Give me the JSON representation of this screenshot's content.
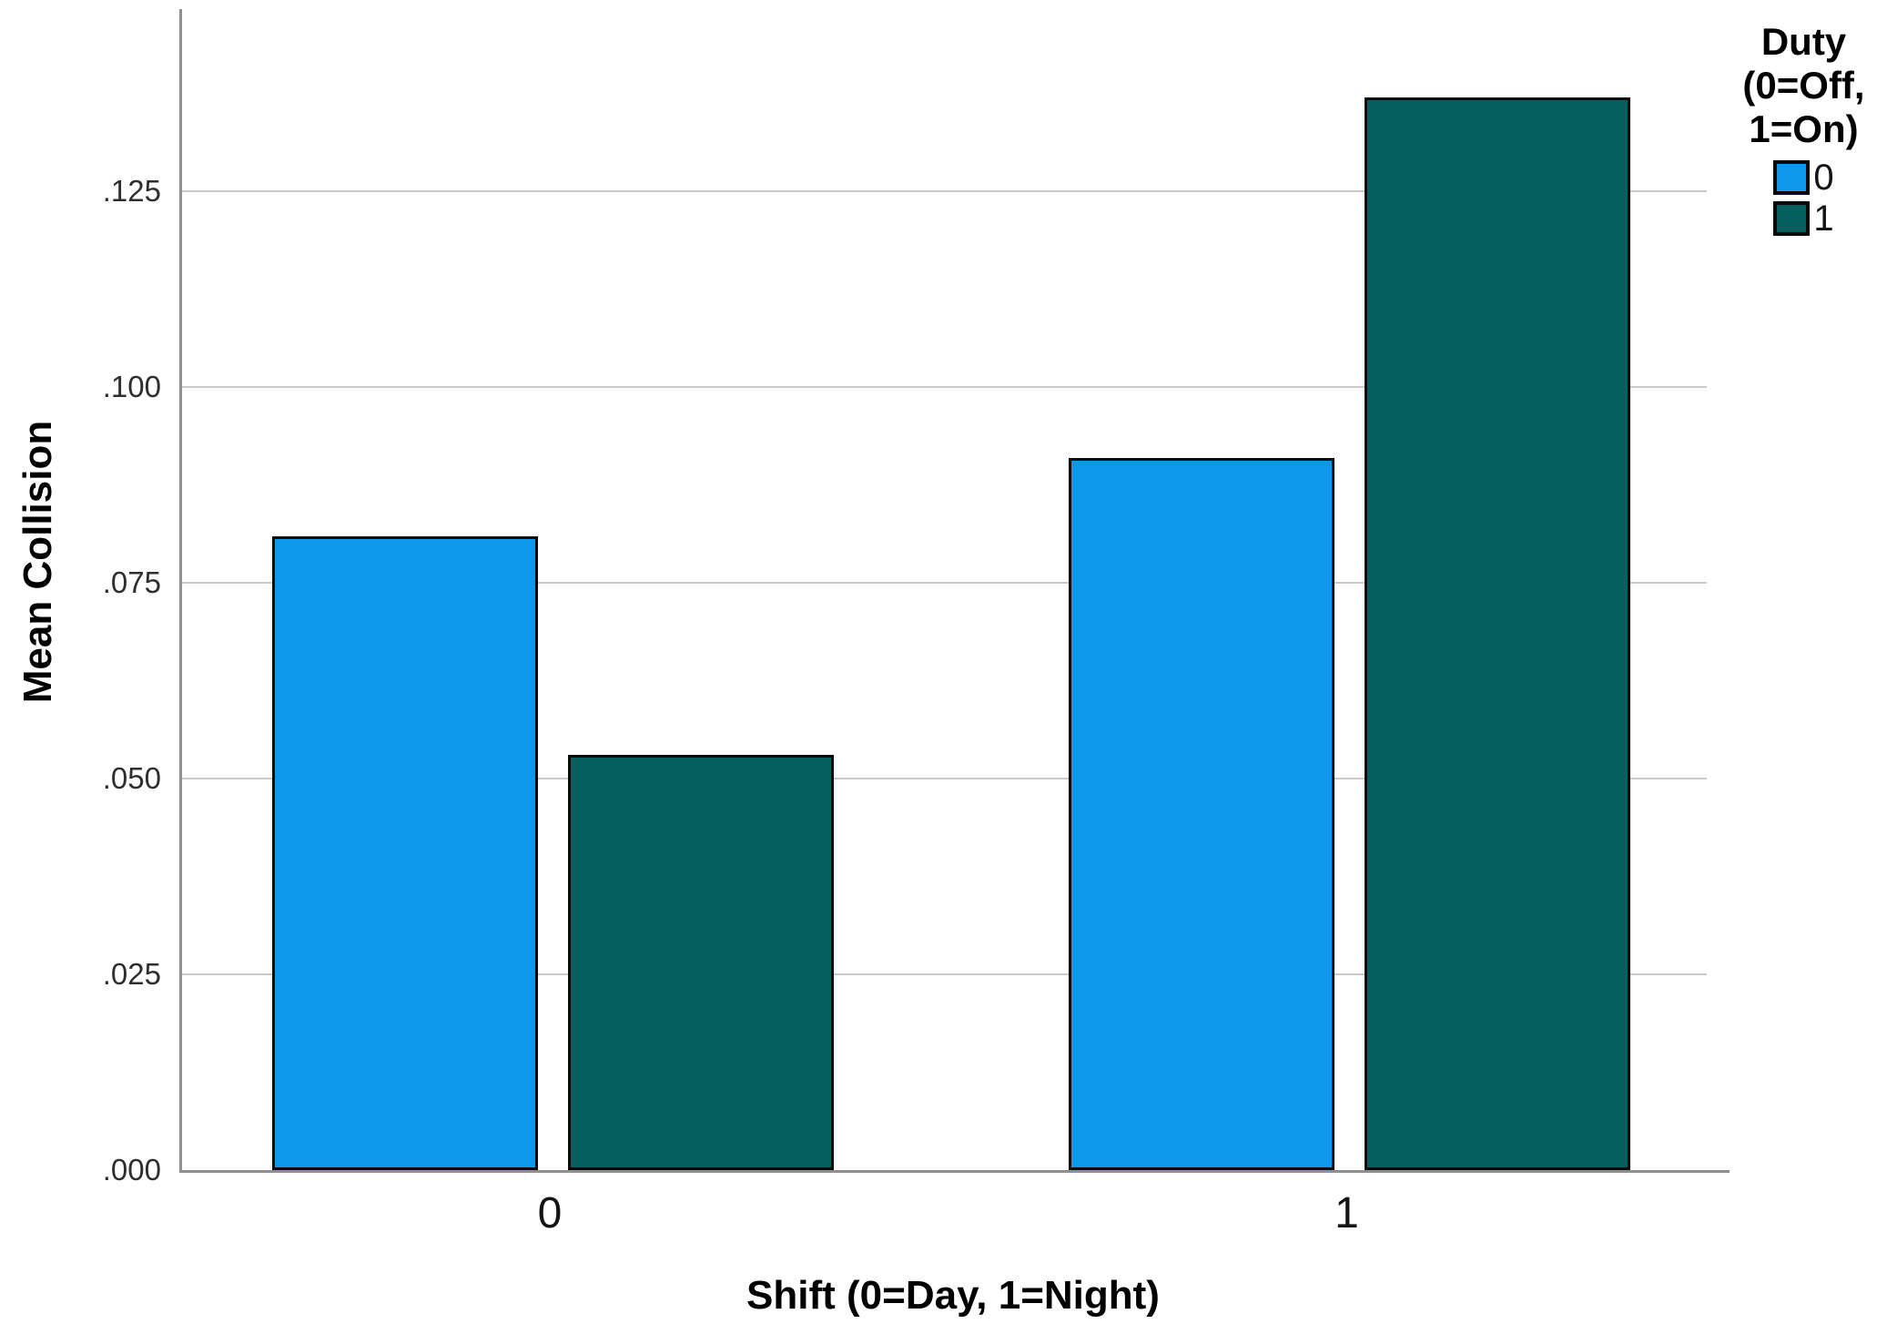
{
  "chart_data": {
    "type": "bar",
    "title": "",
    "xlabel": "Shift (0=Day, 1=Night)",
    "ylabel": "Mean Collision",
    "categories": [
      "0",
      "1"
    ],
    "series": [
      {
        "name": "0",
        "color": "#0d98ec",
        "values": [
          0.081,
          0.091
        ]
      },
      {
        "name": "1",
        "color": "#045f5d",
        "values": [
          0.053,
          0.137
        ]
      }
    ],
    "y_tick_labels": [
      ".000",
      ".025",
      ".050",
      ".075",
      ".100",
      ".125"
    ],
    "y_tick_values": [
      0,
      0.025,
      0.05,
      0.075,
      0.1,
      0.125
    ],
    "ylim": [
      0,
      0.1483
    ],
    "grid": "horizontal",
    "gridline_color": "#c9c9c9",
    "axis_color": "#8f8f8f",
    "bar_outline_color": "#0a0a0a",
    "legend": {
      "title_lines": [
        "Duty",
        "(0=Off,",
        "1=On)"
      ],
      "entries": [
        {
          "label": "0",
          "color": "#0d98ec"
        },
        {
          "label": "1",
          "color": "#045f5d"
        }
      ],
      "position": "top-right"
    }
  }
}
